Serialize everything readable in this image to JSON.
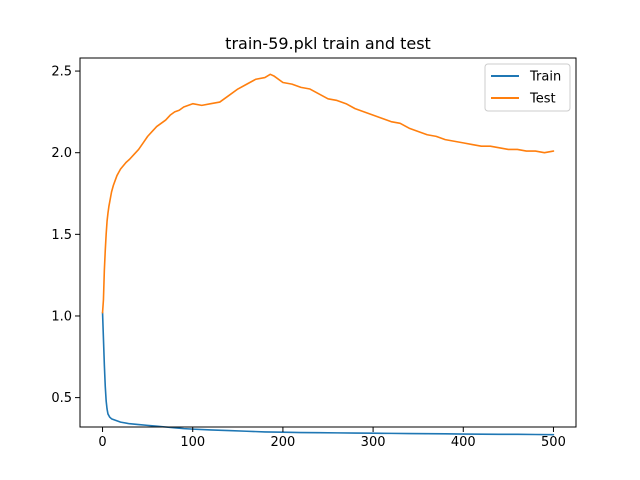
{
  "chart_data": {
    "type": "line",
    "title": "train-59.pkl train and test",
    "xlabel": "",
    "ylabel": "",
    "xlim": [
      -25,
      525
    ],
    "ylim": [
      0.32,
      2.58
    ],
    "x_ticks": [
      0,
      100,
      200,
      300,
      400,
      500
    ],
    "y_ticks": [
      0.5,
      1.0,
      1.5,
      2.0,
      2.5
    ],
    "x_tick_labels": [
      "0",
      "100",
      "200",
      "300",
      "400",
      "500"
    ],
    "y_tick_labels": [
      "0.5",
      "1.0",
      "1.5",
      "2.0",
      "2.5"
    ],
    "grid": false,
    "legend_position": "top-right",
    "series": [
      {
        "name": "Train",
        "color": "#1f77b4",
        "points": [
          [
            0,
            1.02
          ],
          [
            1,
            0.86
          ],
          [
            2,
            0.7
          ],
          [
            3,
            0.57
          ],
          [
            4,
            0.48
          ],
          [
            5,
            0.43
          ],
          [
            6,
            0.4
          ],
          [
            8,
            0.38
          ],
          [
            10,
            0.37
          ],
          [
            15,
            0.36
          ],
          [
            20,
            0.35
          ],
          [
            30,
            0.34
          ],
          [
            40,
            0.335
          ],
          [
            50,
            0.33
          ],
          [
            60,
            0.325
          ],
          [
            70,
            0.32
          ],
          [
            80,
            0.315
          ],
          [
            90,
            0.31
          ],
          [
            100,
            0.307
          ],
          [
            120,
            0.302
          ],
          [
            140,
            0.298
          ],
          [
            160,
            0.294
          ],
          [
            180,
            0.29
          ],
          [
            200,
            0.288
          ],
          [
            220,
            0.286
          ],
          [
            240,
            0.285
          ],
          [
            260,
            0.284
          ],
          [
            280,
            0.283
          ],
          [
            300,
            0.282
          ],
          [
            320,
            0.281
          ],
          [
            340,
            0.28
          ],
          [
            360,
            0.279
          ],
          [
            380,
            0.278
          ],
          [
            400,
            0.277
          ],
          [
            420,
            0.276
          ],
          [
            440,
            0.275
          ],
          [
            460,
            0.275
          ],
          [
            480,
            0.274
          ],
          [
            500,
            0.273
          ]
        ]
      },
      {
        "name": "Test",
        "color": "#ff7f0e",
        "points": [
          [
            0,
            1.02
          ],
          [
            1,
            1.1
          ],
          [
            2,
            1.28
          ],
          [
            3,
            1.4
          ],
          [
            4,
            1.5
          ],
          [
            5,
            1.58
          ],
          [
            6,
            1.63
          ],
          [
            7,
            1.67
          ],
          [
            8,
            1.7
          ],
          [
            9,
            1.73
          ],
          [
            10,
            1.76
          ],
          [
            12,
            1.8
          ],
          [
            14,
            1.83
          ],
          [
            16,
            1.86
          ],
          [
            18,
            1.88
          ],
          [
            20,
            1.9
          ],
          [
            23,
            1.92
          ],
          [
            26,
            1.94
          ],
          [
            30,
            1.96
          ],
          [
            35,
            1.99
          ],
          [
            40,
            2.02
          ],
          [
            45,
            2.06
          ],
          [
            50,
            2.1
          ],
          [
            55,
            2.13
          ],
          [
            60,
            2.16
          ],
          [
            65,
            2.18
          ],
          [
            70,
            2.2
          ],
          [
            75,
            2.23
          ],
          [
            80,
            2.25
          ],
          [
            85,
            2.26
          ],
          [
            90,
            2.28
          ],
          [
            95,
            2.29
          ],
          [
            100,
            2.3
          ],
          [
            110,
            2.29
          ],
          [
            120,
            2.3
          ],
          [
            130,
            2.31
          ],
          [
            140,
            2.35
          ],
          [
            150,
            2.39
          ],
          [
            160,
            2.42
          ],
          [
            170,
            2.45
          ],
          [
            180,
            2.46
          ],
          [
            186,
            2.48
          ],
          [
            190,
            2.47
          ],
          [
            200,
            2.43
          ],
          [
            210,
            2.42
          ],
          [
            220,
            2.4
          ],
          [
            230,
            2.39
          ],
          [
            240,
            2.36
          ],
          [
            250,
            2.33
          ],
          [
            260,
            2.32
          ],
          [
            270,
            2.3
          ],
          [
            280,
            2.27
          ],
          [
            290,
            2.25
          ],
          [
            300,
            2.23
          ],
          [
            310,
            2.21
          ],
          [
            320,
            2.19
          ],
          [
            330,
            2.18
          ],
          [
            340,
            2.15
          ],
          [
            350,
            2.13
          ],
          [
            360,
            2.11
          ],
          [
            370,
            2.1
          ],
          [
            380,
            2.08
          ],
          [
            390,
            2.07
          ],
          [
            400,
            2.06
          ],
          [
            410,
            2.05
          ],
          [
            420,
            2.04
          ],
          [
            430,
            2.04
          ],
          [
            440,
            2.03
          ],
          [
            450,
            2.02
          ],
          [
            460,
            2.02
          ],
          [
            470,
            2.01
          ],
          [
            480,
            2.01
          ],
          [
            490,
            2.0
          ],
          [
            500,
            2.01
          ]
        ]
      }
    ]
  }
}
